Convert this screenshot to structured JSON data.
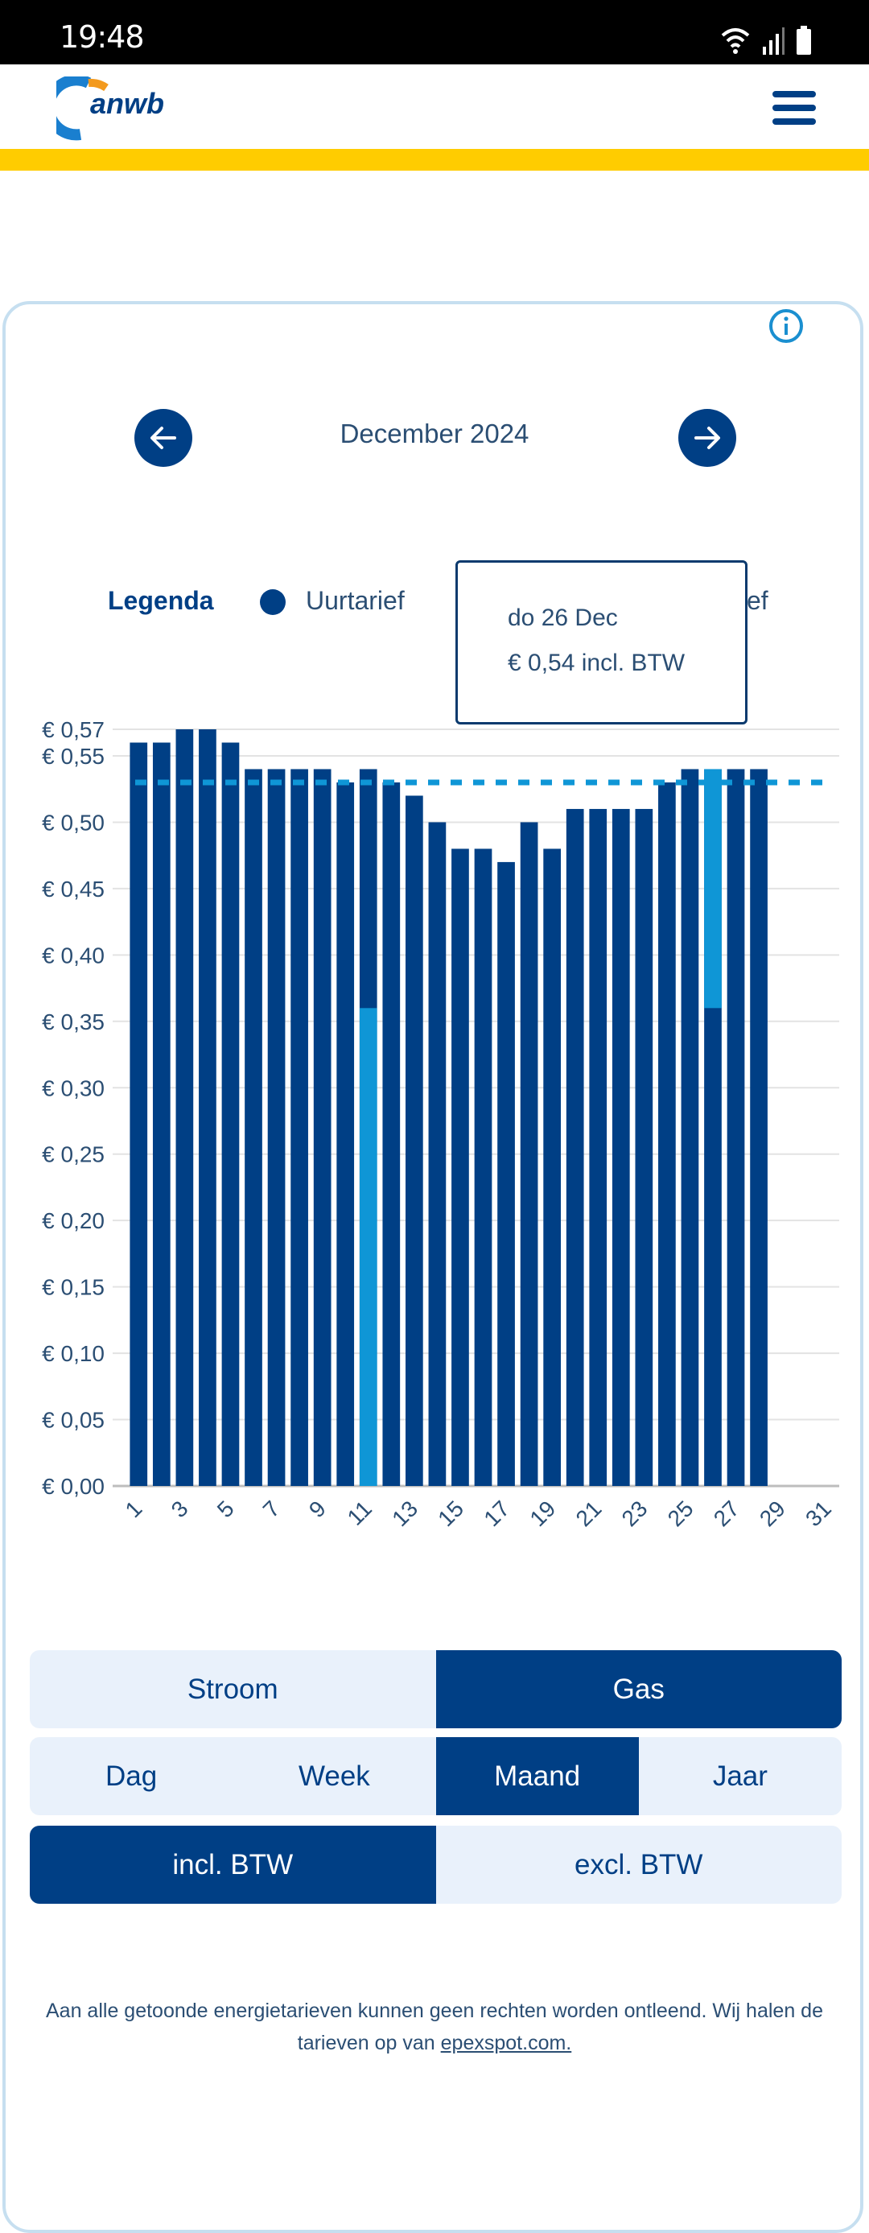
{
  "status_bar": {
    "time": "19:48",
    "icons": [
      "wifi-icon",
      "signal-icon",
      "battery-icon"
    ]
  },
  "header": {
    "logo_text": "anwb",
    "menu_icon": "hamburger-menu-icon"
  },
  "card": {
    "info_icon": "info-icon",
    "period_nav": {
      "prev_icon": "arrow-left-icon",
      "title": "December 2024",
      "next_icon": "arrow-right-icon"
    },
    "legend": {
      "title": "Legenda",
      "items": [
        {
          "label": "Uurtarief",
          "color": "#003f85"
        },
        {
          "label_visible_fragment": "ef"
        }
      ]
    },
    "tooltip": {
      "date": "do 26 Dec",
      "value": "€ 0,54 incl. BTW"
    }
  },
  "chart_data": {
    "type": "bar",
    "title": "December 2024",
    "xlabel": "",
    "ylabel": "",
    "categories": [
      "1",
      "2",
      "3",
      "4",
      "5",
      "6",
      "7",
      "8",
      "9",
      "10",
      "11",
      "12",
      "13",
      "14",
      "15",
      "16",
      "17",
      "18",
      "19",
      "20",
      "21",
      "22",
      "23",
      "24",
      "25",
      "26",
      "27",
      "28",
      "29",
      "30",
      "31"
    ],
    "x_tick_labels": [
      "1",
      "3",
      "5",
      "7",
      "9",
      "11",
      "13",
      "15",
      "17",
      "19",
      "21",
      "23",
      "25",
      "27",
      "29",
      "31"
    ],
    "series": [
      {
        "name": "Uurtarief",
        "color": "#003f85",
        "values": [
          0.56,
          0.56,
          0.57,
          0.57,
          0.56,
          0.54,
          0.54,
          0.54,
          0.54,
          0.53,
          0.54,
          0.53,
          0.52,
          0.5,
          0.48,
          0.48,
          0.47,
          0.5,
          0.48,
          0.51,
          0.51,
          0.51,
          0.51,
          0.53,
          0.54,
          0.54,
          0.54,
          0.54,
          null,
          null,
          null
        ]
      }
    ],
    "average_line": {
      "value": 0.53,
      "color": "#0f96d6",
      "style": "dashed"
    },
    "highlight": {
      "color": "#0f96d6",
      "bars": [
        {
          "day": 11,
          "from": 0.0,
          "to": 0.36
        },
        {
          "day": 26,
          "from": 0.36,
          "to": 0.54
        }
      ]
    },
    "y_ticks": [
      0.0,
      0.05,
      0.1,
      0.15,
      0.2,
      0.25,
      0.3,
      0.35,
      0.4,
      0.45,
      0.5,
      0.55,
      0.57
    ],
    "y_tick_labels": [
      "€ 0,00",
      "€ 0,05",
      "€ 0,10",
      "€ 0,15",
      "€ 0,20",
      "€ 0,25",
      "€ 0,30",
      "€ 0,35",
      "€ 0,40",
      "€ 0,45",
      "€ 0,50",
      "€ 0,55",
      "€ 0,57"
    ],
    "ylim": [
      0,
      0.57
    ],
    "grid": true,
    "legend": "top"
  },
  "toggles": {
    "energy": [
      {
        "label": "Stroom",
        "active": false
      },
      {
        "label": "Gas",
        "active": true
      }
    ],
    "period": [
      {
        "label": "Dag",
        "active": false
      },
      {
        "label": "Week",
        "active": false
      },
      {
        "label": "Maand",
        "active": true
      },
      {
        "label": "Jaar",
        "active": false
      }
    ],
    "vat": [
      {
        "label": "incl. BTW",
        "active": true
      },
      {
        "label": "excl. BTW",
        "active": false
      }
    ]
  },
  "footer": {
    "text": "Aan alle getoonde energietarieven kunnen geen rechten worden ontleend. Wij halen de tarieven op van ",
    "link_text": "epexspot.com."
  },
  "colors": {
    "brand_dark": "#003f85",
    "accent_light": "#0f96d6",
    "yellow": "#ffcc00",
    "toggle_bg": "#e9f1fb"
  }
}
